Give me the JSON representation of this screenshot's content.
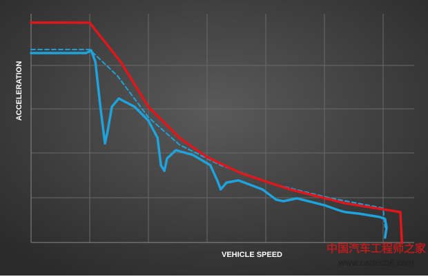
{
  "chart_data": {
    "type": "line",
    "x_label": "VEHICLE SPEED",
    "y_label": "ACCELERATION",
    "xlim": [
      0,
      100
    ],
    "ylim": [
      0,
      100
    ],
    "series": [
      {
        "color": "#e0161b",
        "line_style": "solid",
        "x": [
          0,
          15.3,
          23.4,
          30.6,
          38.7,
          45.9,
          55.0,
          67.6,
          82.0,
          96.4,
          96.8
        ],
        "values": [
          99.1,
          99.1,
          81.4,
          61.2,
          47.2,
          38.5,
          31.1,
          23.9,
          17.7,
          13.7,
          0
        ]
      },
      {
        "color": "#1ea3dd",
        "line_style": "dashed",
        "x": [
          0,
          15.3,
          22.5,
          30.6,
          38.7,
          49.5,
          63.9,
          78.4,
          91.9,
          92.4
        ],
        "values": [
          87,
          87,
          75.2,
          56.5,
          44.1,
          34.8,
          26.1,
          19.9,
          15.5,
          6.8
        ]
      },
      {
        "color": "#1ea3dd",
        "line_style": "solid",
        "x": [
          0,
          14.4,
          15.7,
          16.8,
          18.2,
          19.3,
          20.0,
          21.1,
          22.9,
          27.0,
          30.6,
          33.0,
          33.9,
          34.8,
          35.5,
          37.8,
          42.3,
          46.8,
          48.6,
          49.5,
          51.0,
          54.1,
          60.4,
          64.0,
          65.8,
          69.4,
          76.6,
          80.2,
          82.0,
          85.6,
          91.0,
          92.4,
          92.8,
          92.4
        ],
        "values": [
          85.4,
          85.4,
          86.6,
          81.4,
          59.6,
          44.7,
          50.3,
          61.2,
          64.9,
          61.2,
          55.0,
          47.2,
          34.8,
          32.3,
          37.9,
          41.6,
          39.4,
          34.8,
          28.0,
          23.9,
          27.0,
          28.0,
          23.9,
          19.3,
          18.6,
          19.9,
          16.8,
          14.6,
          13.7,
          13.0,
          11.5,
          10.6,
          6.8,
          2.2
        ]
      }
    ],
    "annotations": [
      "中国汽车工程师之家",
      "www.cartech8.com"
    ]
  }
}
